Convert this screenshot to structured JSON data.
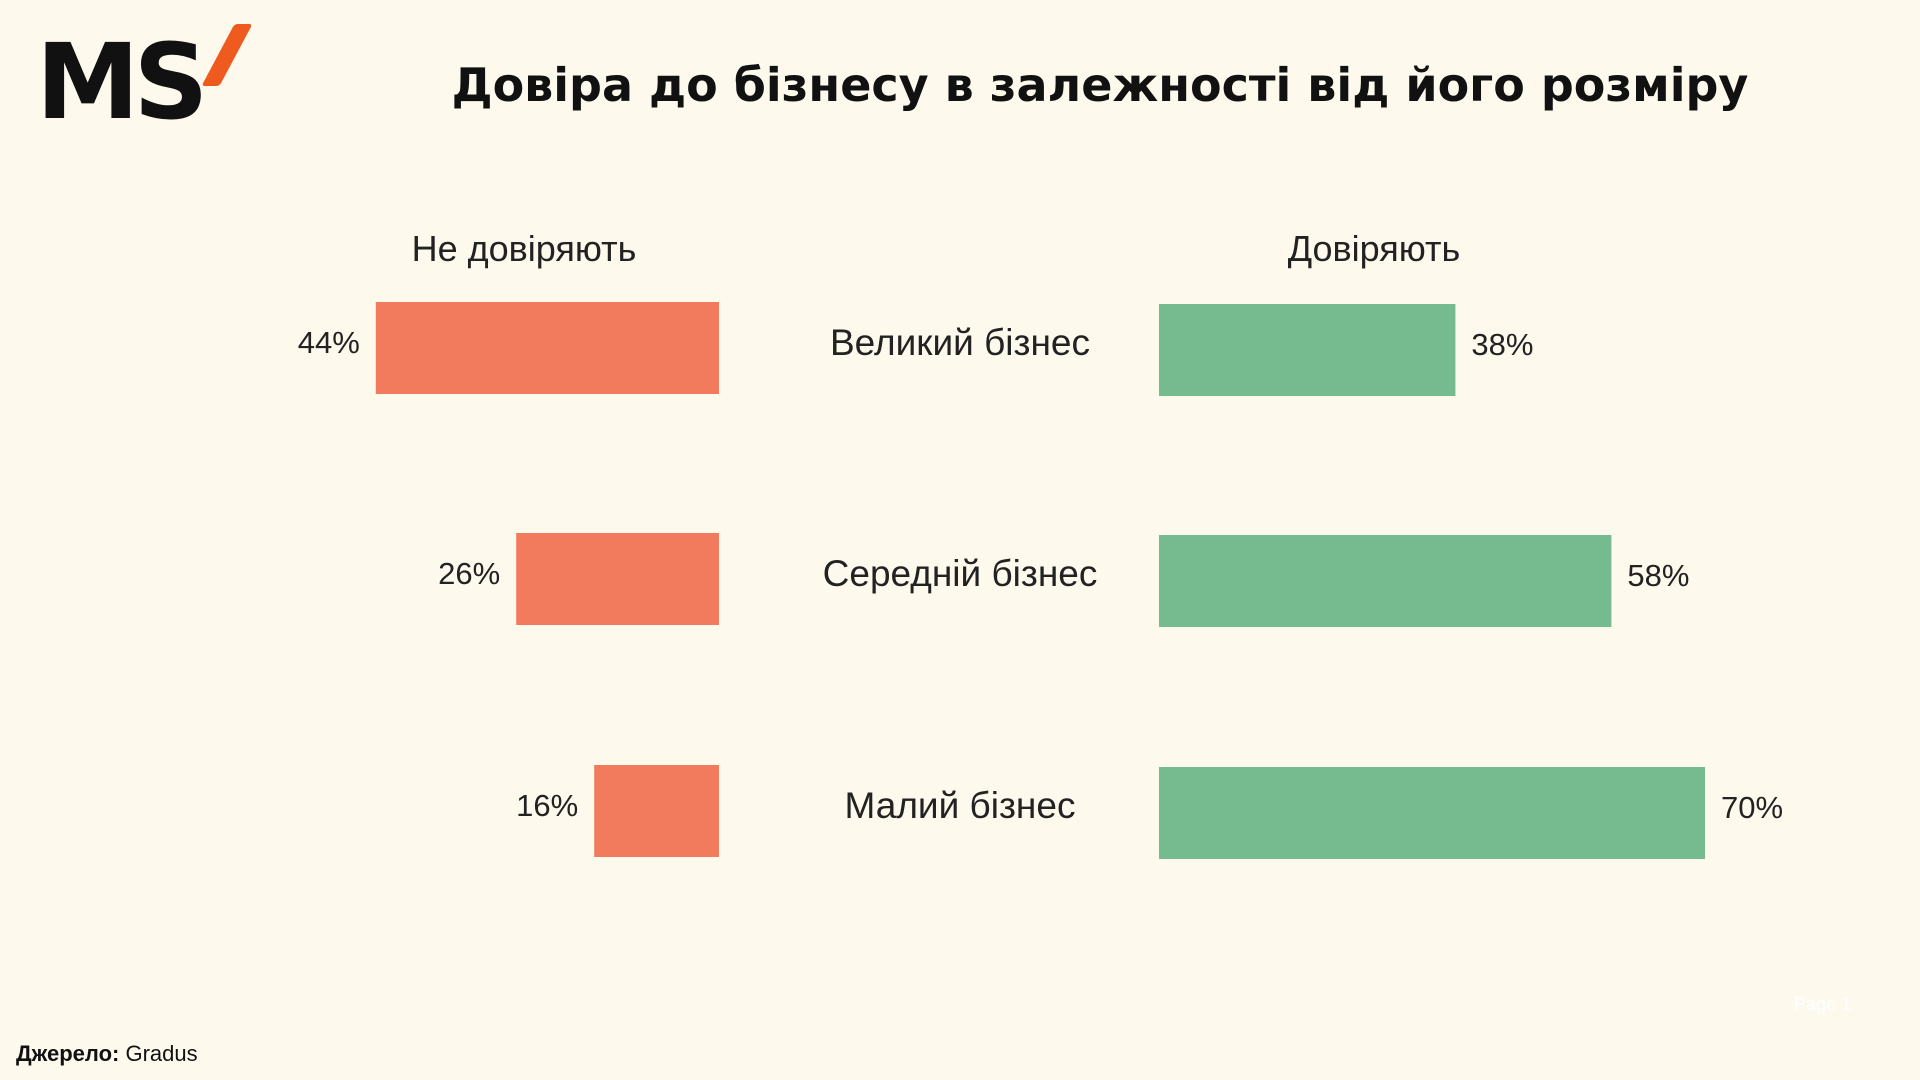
{
  "logo": {
    "text": "MS"
  },
  "title": "Довіра до бізнесу в залежності від його розміру",
  "column_headers": {
    "left": "Не довіряють",
    "right": "Довіряють"
  },
  "source": {
    "label": "Джерело:",
    "value": "Gradus"
  },
  "page_label": "Page 1",
  "colors": {
    "distrust": "#f27b5d",
    "trust": "#76bb8f",
    "background": "#fdf9ed",
    "logo_accent": "#ef5a1f"
  },
  "chart_data": {
    "type": "bar",
    "orientation": "horizontal-diverging",
    "categories": [
      "Великий бізнес",
      "Середній бізнес",
      "Малий бізнес"
    ],
    "series": [
      {
        "name": "Не довіряють",
        "values": [
          44,
          26,
          16
        ],
        "labels": [
          "44%",
          "26%",
          "16%"
        ]
      },
      {
        "name": "Довіряють",
        "values": [
          38,
          58,
          70
        ],
        "labels": [
          "38%",
          "58%",
          "70%"
        ]
      }
    ],
    "unit": "%",
    "grid": false
  }
}
